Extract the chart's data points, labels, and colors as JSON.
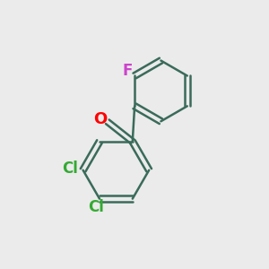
{
  "background_color": "#ebebeb",
  "bond_color": "#3a6b5a",
  "bond_width": 1.8,
  "F_label": "F",
  "F_color": "#cc44cc",
  "O_label": "O",
  "O_color": "#ff0000",
  "Cl1_label": "Cl",
  "Cl1_color": "#33aa33",
  "Cl2_label": "Cl",
  "Cl2_color": "#33aa33",
  "font_size": 12
}
